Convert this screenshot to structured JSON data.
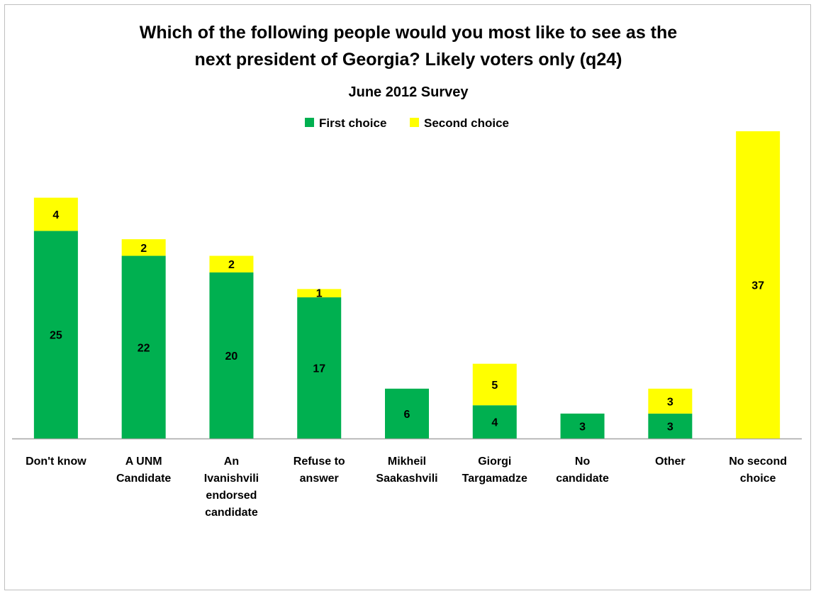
{
  "chart_data": {
    "type": "bar",
    "stacked": true,
    "title": [
      "Which of the following people would you most like to see as the",
      "next president of Georgia? Likely voters only (q24)"
    ],
    "subtitle": "June 2012 Survey",
    "categories": [
      [
        "Don't know"
      ],
      [
        "A UNM",
        "Candidate"
      ],
      [
        "An",
        "Ivanishvili",
        "endorsed",
        "candidate"
      ],
      [
        "Refuse to",
        "answer"
      ],
      [
        "Mikheil",
        "Saakashvili"
      ],
      [
        "Giorgi",
        "Targamadze"
      ],
      [
        "No",
        "candidate"
      ],
      [
        "Other"
      ],
      [
        "No second",
        "choice"
      ]
    ],
    "series": [
      {
        "name": "First choice",
        "color": "#00b050",
        "values": [
          25,
          22,
          20,
          17,
          6,
          4,
          3,
          3,
          0
        ]
      },
      {
        "name": "Second choice",
        "color": "#ffff00",
        "values": [
          4,
          2,
          2,
          1,
          0,
          5,
          0,
          3,
          37
        ]
      }
    ],
    "ylim": [
      0,
      37
    ],
    "grid": false,
    "legend": "top-center",
    "xlabel": "",
    "ylabel": ""
  }
}
